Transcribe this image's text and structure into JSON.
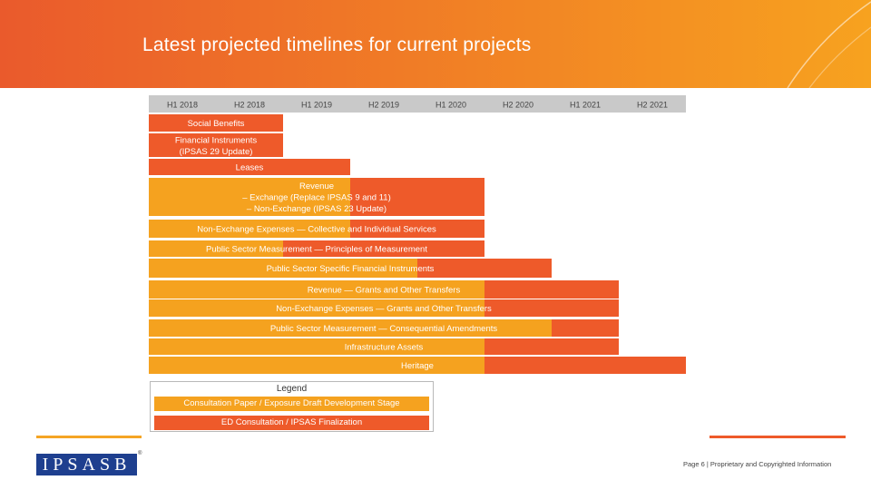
{
  "header": {
    "title": "Latest projected timelines for current projects",
    "gradient_start": "#ea5a2c",
    "gradient_end": "#f7a21f"
  },
  "chart_data": {
    "type": "gantt",
    "periods": [
      "H1 2018",
      "H2 2018",
      "H1 2019",
      "H2 2019",
      "H1 2020",
      "H2 2020",
      "H1 2021",
      "H2 2021"
    ],
    "stages": [
      {
        "name": "Consultation Paper / Exposure Draft Development Stage",
        "color": "#f5a21f"
      },
      {
        "name": "ED Consultation / IPSAS Finalization",
        "color": "#ee5a2a"
      }
    ],
    "projects": [
      {
        "label": [
          "Social Benefits"
        ],
        "segments": [
          {
            "stage": 1,
            "start": 0,
            "end": 2
          }
        ]
      },
      {
        "label": [
          "Financial Instruments",
          "(IPSAS 29 Update)"
        ],
        "segments": [
          {
            "stage": 1,
            "start": 0,
            "end": 2
          }
        ]
      },
      {
        "label": [
          "Leases"
        ],
        "segments": [
          {
            "stage": 1,
            "start": 0,
            "end": 3
          }
        ]
      },
      {
        "label": [
          "Revenue",
          "– Exchange (Replace IPSAS 9 and 11)",
          "– Non-Exchange (IPSAS 23 Update)"
        ],
        "segments": [
          {
            "stage": 0,
            "start": 0,
            "end": 3
          },
          {
            "stage": 1,
            "start": 3,
            "end": 5
          }
        ]
      },
      {
        "label": [
          "Non-Exchange Expenses — Collective and Individual Services"
        ],
        "segments": [
          {
            "stage": 0,
            "start": 0,
            "end": 3
          },
          {
            "stage": 1,
            "start": 3,
            "end": 5
          }
        ]
      },
      {
        "label": [
          "Public Sector Measurement — Principles of Measurement"
        ],
        "segments": [
          {
            "stage": 0,
            "start": 0,
            "end": 2
          },
          {
            "stage": 1,
            "start": 2,
            "end": 5
          }
        ]
      },
      {
        "label": [
          "Public Sector Specific Financial Instruments"
        ],
        "segments": [
          {
            "stage": 0,
            "start": 0,
            "end": 4
          },
          {
            "stage": 1,
            "start": 4,
            "end": 6
          }
        ]
      },
      {
        "label": [
          "Revenue — Grants and Other Transfers"
        ],
        "segments": [
          {
            "stage": 0,
            "start": 0,
            "end": 5
          },
          {
            "stage": 1,
            "start": 5,
            "end": 7
          }
        ]
      },
      {
        "label": [
          "Non-Exchange Expenses — Grants and Other Transfers"
        ],
        "segments": [
          {
            "stage": 0,
            "start": 0,
            "end": 5
          },
          {
            "stage": 1,
            "start": 5,
            "end": 7
          }
        ]
      },
      {
        "label": [
          "Public Sector Measurement — Consequential Amendments"
        ],
        "segments": [
          {
            "stage": 0,
            "start": 0,
            "end": 6
          },
          {
            "stage": 1,
            "start": 6,
            "end": 7
          }
        ]
      },
      {
        "label": [
          "Infrastructure Assets"
        ],
        "segments": [
          {
            "stage": 0,
            "start": 0,
            "end": 5
          },
          {
            "stage": 1,
            "start": 5,
            "end": 7
          }
        ]
      },
      {
        "label": [
          "Heritage"
        ],
        "segments": [
          {
            "stage": 0,
            "start": 0,
            "end": 5
          },
          {
            "stage": 1,
            "start": 5,
            "end": 8
          }
        ]
      }
    ],
    "legend": {
      "title": "Legend",
      "items": [
        "Consultation Paper / Exposure Draft Development Stage",
        "ED Consultation / IPSAS Finalization"
      ]
    },
    "header_color": "#c9c9c9"
  },
  "footer": {
    "logo_text": "IPSASB",
    "logo_mark": "®",
    "page_text": "Page 6 | Proprietary and Copyrighted Information"
  }
}
